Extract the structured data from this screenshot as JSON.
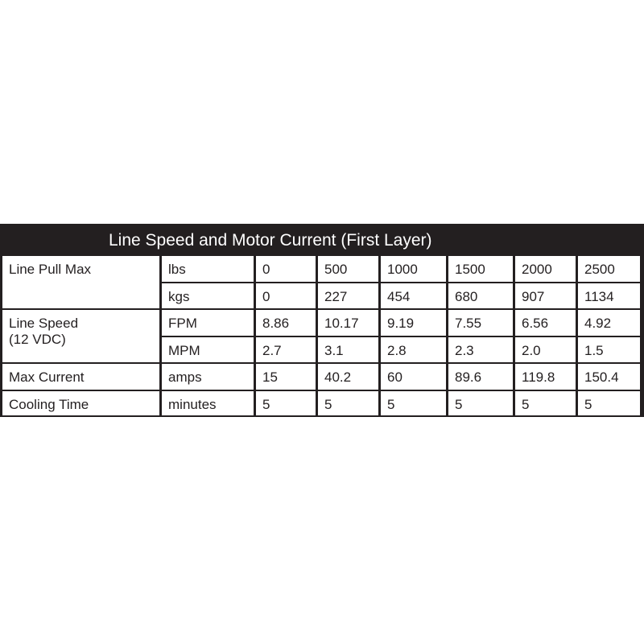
{
  "title": "Line Speed and Motor Current (First Layer)",
  "rows": [
    {
      "label": "Line Pull Max",
      "units": [
        {
          "unit": "lbs",
          "values": [
            "0",
            "500",
            "1000",
            "1500",
            "2000",
            "2500"
          ]
        },
        {
          "unit": "kgs",
          "values": [
            "0",
            "227",
            "454",
            "680",
            "907",
            "1134"
          ]
        }
      ]
    },
    {
      "label": "Line Speed",
      "label2": "(12 VDC)",
      "units": [
        {
          "unit": "FPM",
          "values": [
            "8.86",
            "10.17",
            "9.19",
            "7.55",
            "6.56",
            "4.92"
          ]
        },
        {
          "unit": "MPM",
          "values": [
            "2.7",
            "3.1",
            "2.8",
            "2.3",
            "2.0",
            "1.5"
          ]
        }
      ]
    },
    {
      "label": "Max Current",
      "units": [
        {
          "unit": "amps",
          "values": [
            "15",
            "40.2",
            "60",
            "89.6",
            "119.8",
            "150.4"
          ]
        }
      ]
    },
    {
      "label": "Cooling Time",
      "units": [
        {
          "unit": "minutes",
          "values": [
            "5",
            "5",
            "5",
            "5",
            "5",
            "5"
          ]
        }
      ]
    }
  ]
}
